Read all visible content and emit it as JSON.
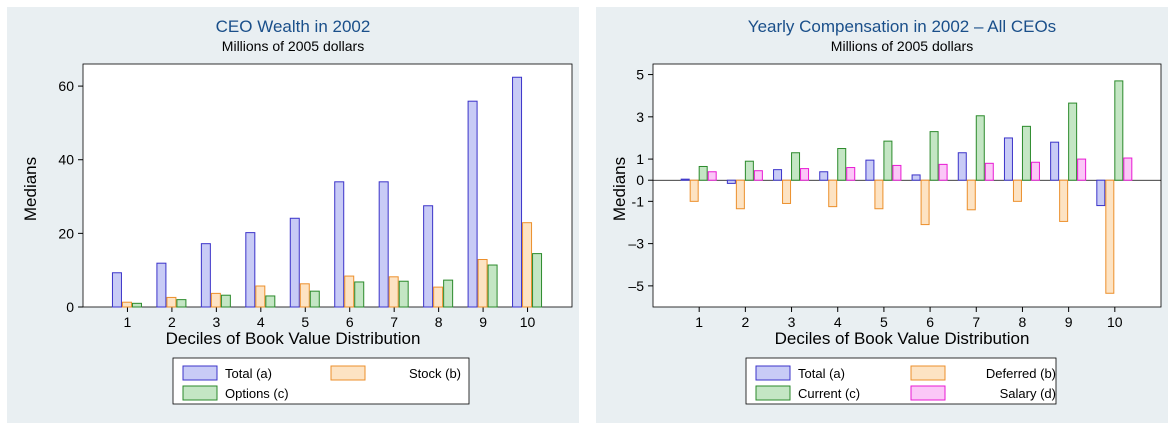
{
  "chart_data": [
    {
      "type": "bar",
      "title": "CEO Wealth in 2002",
      "subtitle": "Millions of 2005 dollars",
      "xlabel": "Deciles of Book Value Distribution",
      "ylabel": "Medians",
      "categories": [
        "1",
        "2",
        "3",
        "4",
        "5",
        "6",
        "7",
        "8",
        "9",
        "10"
      ],
      "ylim": [
        0,
        66
      ],
      "yticks": [
        0,
        20,
        40,
        60
      ],
      "grid": false,
      "legend_position": "bottom",
      "legend_columns": 2,
      "series": [
        {
          "name": "Total (a)",
          "color": "#c8cbf6",
          "stroke": "#3b33c9",
          "values": [
            9.3,
            11.9,
            17.2,
            20.2,
            24.1,
            34.0,
            34.0,
            27.5,
            55.9,
            62.4
          ]
        },
        {
          "name": "Stock (b)",
          "color": "#fde3c3",
          "stroke": "#ec8f2b",
          "values": [
            1.3,
            2.6,
            3.7,
            5.7,
            6.3,
            8.4,
            8.2,
            5.4,
            12.9,
            22.9
          ]
        },
        {
          "name": "Options (c)",
          "color": "#c4e6c4",
          "stroke": "#2b8a2b",
          "values": [
            1.0,
            2.0,
            3.2,
            3.0,
            4.3,
            6.8,
            7.0,
            7.3,
            11.4,
            14.5
          ]
        }
      ]
    },
    {
      "type": "bar",
      "title": "Yearly Compensation in 2002 – All CEOs",
      "subtitle": "Millions of 2005 dollars",
      "xlabel": "Deciles of Book Value Distribution",
      "ylabel": "Medians",
      "categories": [
        "1",
        "2",
        "3",
        "4",
        "5",
        "6",
        "7",
        "8",
        "9",
        "10"
      ],
      "ylim": [
        -6,
        5.5
      ],
      "yticks": [
        5,
        3,
        1,
        0,
        -1,
        -3,
        -5
      ],
      "ytick_labels": [
        "5",
        "3",
        "1",
        "0",
        "-1",
        "–3",
        "–5"
      ],
      "grid": false,
      "legend_position": "bottom",
      "legend_columns": 2,
      "series": [
        {
          "name": "Total (a)",
          "color": "#c8cbf6",
          "stroke": "#3b33c9",
          "values": [
            0.05,
            -0.15,
            0.5,
            0.4,
            0.95,
            0.25,
            1.3,
            2.0,
            1.8,
            -1.2
          ]
        },
        {
          "name": "Deferred (b)",
          "color": "#fde3c3",
          "stroke": "#ec8f2b",
          "values": [
            -1.0,
            -1.35,
            -1.1,
            -1.25,
            -1.35,
            -2.1,
            -1.4,
            -1.0,
            -1.95,
            -5.35
          ]
        },
        {
          "name": "Current (c)",
          "color": "#c4e6c4",
          "stroke": "#2b8a2b",
          "values": [
            0.65,
            0.9,
            1.3,
            1.5,
            1.85,
            2.3,
            3.05,
            2.55,
            3.65,
            4.7
          ]
        },
        {
          "name": "Salary (d)",
          "color": "#fbc7f7",
          "stroke": "#e81ad3",
          "values": [
            0.4,
            0.45,
            0.55,
            0.6,
            0.7,
            0.75,
            0.8,
            0.85,
            1.0,
            1.05
          ]
        }
      ]
    }
  ]
}
